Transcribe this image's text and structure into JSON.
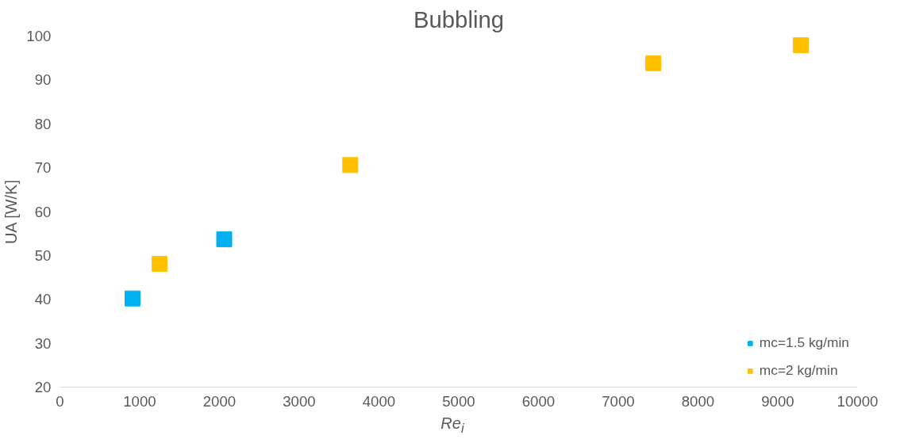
{
  "chart_data": {
    "type": "scatter",
    "title": "Bubbling",
    "xlabel": "Re$_{i}$",
    "ylabel": "UA [W/K]",
    "marker": "square",
    "legend": "bottom right",
    "grid": false,
    "xlim": [
      0,
      10000
    ],
    "xticks": [
      0,
      1000,
      2000,
      3000,
      4000,
      5000,
      6000,
      7000,
      8000,
      9000,
      10000
    ],
    "ylim": [
      20,
      100
    ],
    "yticks": [
      20,
      30,
      40,
      50,
      60,
      70,
      80,
      90,
      100
    ],
    "series": [
      {
        "name": "mc=1.5 kg/min",
        "color": "#00b0f0",
        "x": [
          910,
          2060
        ],
        "values": [
          40.2,
          53.7
        ]
      },
      {
        "name": "mc=2 kg/min",
        "color": "#ffc000",
        "x": [
          1250,
          3640,
          7440,
          9290
        ],
        "values": [
          48.1,
          70.6,
          93.8,
          97.9
        ]
      }
    ]
  }
}
